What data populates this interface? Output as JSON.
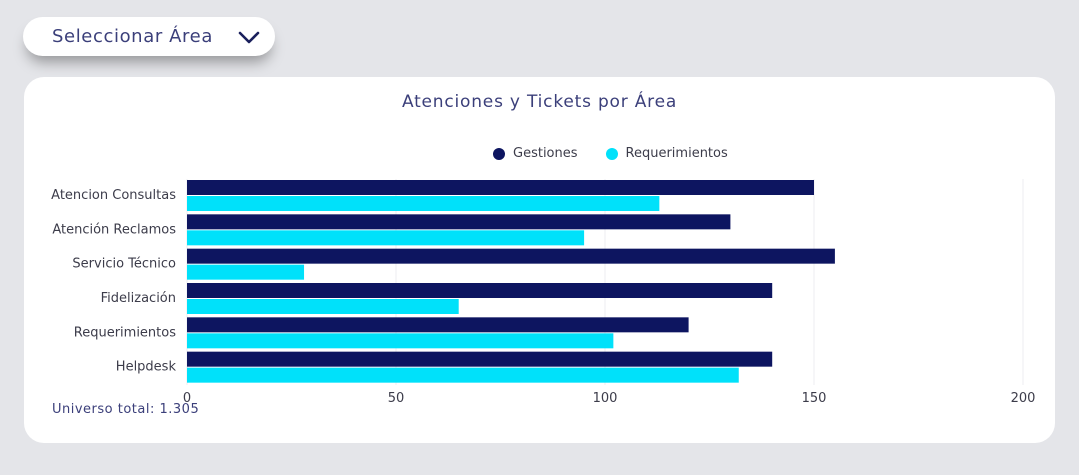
{
  "area_select": {
    "label": "Seleccionar Área",
    "icon": "chevron-down-icon"
  },
  "chart_data": {
    "type": "bar",
    "orientation": "horizontal",
    "title": "Atenciones y Tickets por Área",
    "categories": [
      "Atencion Consultas",
      "Atención Reclamos",
      "Servicio Técnico",
      "Fidelización",
      "Requerimientos",
      "Helpdesk"
    ],
    "series": [
      {
        "name": "Gestiones",
        "color": "#0d1560",
        "values": [
          150,
          130,
          155,
          140,
          120,
          140
        ]
      },
      {
        "name": "Requerimientos",
        "color": "#00e1fa",
        "values": [
          113,
          95,
          28,
          65,
          102,
          132
        ]
      }
    ],
    "xlim": [
      0,
      200
    ],
    "xticks": [
      0,
      50,
      100,
      150,
      200
    ],
    "grid": true,
    "legend_position": "top"
  },
  "footer": {
    "universe_text": "Universo total: 1.305"
  }
}
